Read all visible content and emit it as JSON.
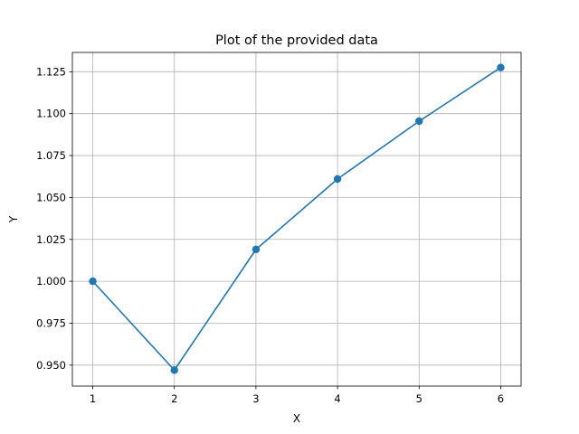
{
  "chart_data": {
    "type": "line",
    "title": "Plot of the provided data",
    "xlabel": "X",
    "ylabel": "Y",
    "x": [
      1,
      2,
      3,
      4,
      5,
      6
    ],
    "series": [
      {
        "values": [
          1.0,
          0.947,
          1.019,
          1.061,
          1.0955,
          1.1275
        ]
      }
    ],
    "xlim": [
      0.75,
      6.25
    ],
    "ylim": [
      0.9375,
      1.1365
    ],
    "xticks": [
      1,
      2,
      3,
      4,
      5,
      6
    ],
    "xtick_labels": [
      "1",
      "2",
      "3",
      "4",
      "5",
      "6"
    ],
    "yticks": [
      0.95,
      0.975,
      1.0,
      1.025,
      1.05,
      1.075,
      1.1,
      1.125
    ],
    "ytick_labels": [
      "0.950",
      "0.975",
      "1.000",
      "1.025",
      "1.050",
      "1.075",
      "1.100",
      "1.125"
    ],
    "grid": true,
    "markers": true,
    "colors": {
      "line": "#1f77b4",
      "grid": "#b0b0b0",
      "axes": "#000000"
    }
  }
}
